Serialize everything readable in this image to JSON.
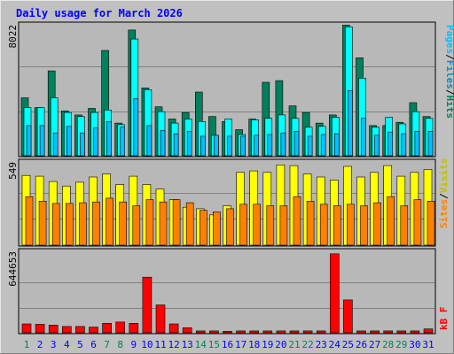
{
  "chart_data": [
    {
      "type": "bar",
      "title": "Daily usage for March 2026",
      "ylabel_parts": [
        "Pages",
        "Files",
        "Hits"
      ],
      "ytick": "8022",
      "ymax": 8022,
      "categories": [
        "1",
        "2",
        "3",
        "4",
        "5",
        "6",
        "7",
        "8",
        "9",
        "10",
        "11",
        "12",
        "13",
        "14",
        "15",
        "16",
        "17",
        "18",
        "19",
        "20",
        "21",
        "22",
        "23",
        "24",
        "25",
        "26",
        "27",
        "28",
        "29",
        "30",
        "31"
      ],
      "weekend_days": [
        1,
        7,
        8,
        14,
        15,
        21,
        22,
        28,
        29
      ],
      "series": [
        {
          "name": "Hits",
          "values": [
            3550,
            2950,
            5200,
            2750,
            2500,
            2900,
            6450,
            2000,
            7700,
            4150,
            3000,
            2250,
            2650,
            3900,
            2400,
            2100,
            1600,
            2250,
            4500,
            4600,
            3050,
            2650,
            2000,
            2500,
            8000,
            6000,
            1850,
            1850,
            2050,
            3250,
            2400
          ]
        },
        {
          "name": "Files",
          "values": [
            2950,
            2950,
            3550,
            2650,
            2400,
            2650,
            2800,
            1900,
            7150,
            4050,
            2700,
            2000,
            2250,
            2100,
            1250,
            2250,
            1300,
            2200,
            2300,
            2500,
            2300,
            1750,
            1800,
            2350,
            7900,
            4750,
            1750,
            2350,
            1950,
            2700,
            2300
          ]
        },
        {
          "name": "Pages",
          "values": [
            1850,
            1850,
            1400,
            1800,
            1400,
            1700,
            2100,
            1750,
            3500,
            1850,
            1550,
            1350,
            1500,
            1200,
            1250,
            1200,
            1200,
            1250,
            1300,
            1400,
            1500,
            1200,
            1300,
            1350,
            4000,
            2300,
            1250,
            1450,
            1350,
            1500,
            1500
          ]
        }
      ]
    },
    {
      "type": "bar",
      "ylabel_parts": [
        "Sites",
        "Visits"
      ],
      "ytick": "549",
      "ymax": 549,
      "series": [
        {
          "name": "Visits",
          "values": [
            460,
            455,
            420,
            390,
            415,
            450,
            470,
            400,
            455,
            400,
            370,
            300,
            250,
            240,
            200,
            260,
            480,
            490,
            480,
            530,
            525,
            470,
            450,
            430,
            520,
            450,
            480,
            525,
            455,
            480,
            500
          ]
        },
        {
          "name": "Sites",
          "values": [
            320,
            290,
            275,
            275,
            280,
            285,
            310,
            285,
            260,
            300,
            285,
            300,
            280,
            230,
            220,
            240,
            270,
            270,
            260,
            260,
            320,
            290,
            270,
            260,
            270,
            260,
            280,
            320,
            260,
            300,
            290
          ]
        }
      ]
    },
    {
      "type": "bar",
      "ylabel_parts": [
        "kB F"
      ],
      "ytick": "644653",
      "ymax": 644653,
      "series": [
        {
          "name": "kB F",
          "values": [
            70000,
            68000,
            60000,
            50000,
            50000,
            45000,
            75000,
            85000,
            75000,
            440000,
            220000,
            70000,
            40000,
            15000,
            15000,
            12000,
            15000,
            15000,
            15000,
            15000,
            15000,
            15000,
            15000,
            625000,
            260000,
            15000,
            15000,
            15000,
            15000,
            15000,
            30000
          ]
        }
      ]
    }
  ],
  "colors": {
    "background": "#c0c0c0",
    "plot_bg": "#b8b8b8",
    "title": "#0000ff",
    "hits": "#00805c",
    "files": "#00ffff",
    "pages": "#00c0ff",
    "visits": "#ffff00",
    "sites": "#ff8000",
    "kbytes": "#ff0000",
    "day_weekday": "#0000ff",
    "day_weekend": "#00805c",
    "grid": "#808080"
  }
}
